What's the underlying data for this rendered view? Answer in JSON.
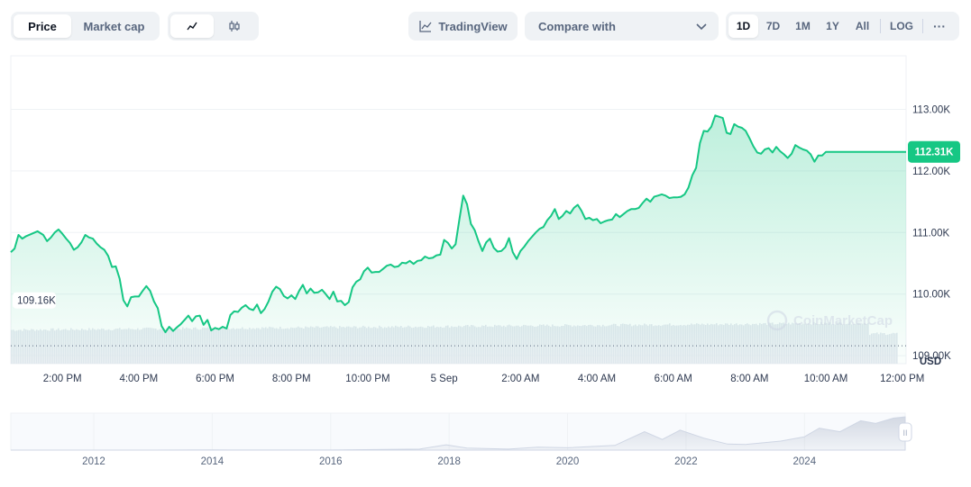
{
  "toolbar": {
    "type_tabs": [
      "Price",
      "Market cap"
    ],
    "tradingview_label": "TradingView",
    "compare_label": "Compare with",
    "ranges": [
      "1D",
      "7D",
      "1M",
      "1Y",
      "All"
    ],
    "log_label": "LOG",
    "more_label": "···"
  },
  "colors": {
    "line": "#16c784",
    "accent": "#16c784",
    "axis_text": "#2e3950"
  },
  "chart_data": {
    "type": "area",
    "title": "",
    "xlabel": "",
    "ylabel": "USD",
    "unit_label": "USD",
    "ylim": [
      108870,
      113870
    ],
    "y_ticks": [
      109000,
      110000,
      111000,
      112000,
      113000
    ],
    "y_tick_labels": [
      "109.00K",
      "110.00K",
      "111.00K",
      "112.00K",
      "113.00K"
    ],
    "x_tick_labels": [
      "2:00 PM",
      "4:00 PM",
      "6:00 PM",
      "8:00 PM",
      "10:00 PM",
      "5 Sep",
      "2:00 AM",
      "4:00 AM",
      "6:00 AM",
      "8:00 AM",
      "10:00 AM",
      "12:00 PM"
    ],
    "x_tick_hours": [
      2,
      4,
      6,
      8,
      10,
      12,
      14,
      16,
      18,
      20,
      22,
      24
    ],
    "x_range_hours": [
      0.65,
      24.1
    ],
    "open_price": 109160,
    "open_label": "109.16K",
    "current_price": 112310,
    "current_label": "112.31K",
    "watermark": "CoinMarketCap",
    "series": [
      {
        "name": "Price",
        "points": [
          [
            0.65,
            110680
          ],
          [
            0.75,
            110740
          ],
          [
            0.85,
            110960
          ],
          [
            0.95,
            110900
          ],
          [
            1.05,
            110940
          ],
          [
            1.2,
            110980
          ],
          [
            1.35,
            111020
          ],
          [
            1.5,
            110960
          ],
          [
            1.6,
            110860
          ],
          [
            1.7,
            110920
          ],
          [
            1.8,
            111000
          ],
          [
            1.9,
            111050
          ],
          [
            2.0,
            110980
          ],
          [
            2.1,
            110900
          ],
          [
            2.2,
            110830
          ],
          [
            2.3,
            110720
          ],
          [
            2.4,
            110760
          ],
          [
            2.5,
            110840
          ],
          [
            2.6,
            110960
          ],
          [
            2.7,
            110920
          ],
          [
            2.8,
            110900
          ],
          [
            2.9,
            110820
          ],
          [
            3.0,
            110760
          ],
          [
            3.1,
            110720
          ],
          [
            3.2,
            110620
          ],
          [
            3.3,
            110440
          ],
          [
            3.4,
            110450
          ],
          [
            3.5,
            110250
          ],
          [
            3.6,
            109900
          ],
          [
            3.7,
            109800
          ],
          [
            3.8,
            109950
          ],
          [
            3.9,
            109960
          ],
          [
            4.0,
            109960
          ],
          [
            4.1,
            110050
          ],
          [
            4.2,
            110130
          ],
          [
            4.3,
            110050
          ],
          [
            4.4,
            109880
          ],
          [
            4.5,
            109770
          ],
          [
            4.6,
            109480
          ],
          [
            4.7,
            109380
          ],
          [
            4.8,
            109470
          ],
          [
            4.9,
            109400
          ],
          [
            5.0,
            109460
          ],
          [
            5.1,
            109510
          ],
          [
            5.2,
            109580
          ],
          [
            5.3,
            109650
          ],
          [
            5.4,
            109560
          ],
          [
            5.5,
            109640
          ],
          [
            5.6,
            109650
          ],
          [
            5.7,
            109500
          ],
          [
            5.8,
            109580
          ],
          [
            5.9,
            109410
          ],
          [
            6.0,
            109450
          ],
          [
            6.1,
            109430
          ],
          [
            6.2,
            109470
          ],
          [
            6.3,
            109440
          ],
          [
            6.4,
            109660
          ],
          [
            6.5,
            109720
          ],
          [
            6.6,
            109710
          ],
          [
            6.7,
            109780
          ],
          [
            6.8,
            109820
          ],
          [
            6.9,
            109760
          ],
          [
            7.0,
            109740
          ],
          [
            7.1,
            109830
          ],
          [
            7.2,
            109690
          ],
          [
            7.3,
            109760
          ],
          [
            7.4,
            109880
          ],
          [
            7.5,
            110040
          ],
          [
            7.6,
            110120
          ],
          [
            7.7,
            110080
          ],
          [
            7.8,
            109970
          ],
          [
            7.9,
            109930
          ],
          [
            8.0,
            109980
          ],
          [
            8.1,
            109920
          ],
          [
            8.2,
            110050
          ],
          [
            8.3,
            110150
          ],
          [
            8.4,
            110010
          ],
          [
            8.5,
            110090
          ],
          [
            8.6,
            110020
          ],
          [
            8.7,
            110030
          ],
          [
            8.8,
            110070
          ],
          [
            8.9,
            110000
          ],
          [
            9.0,
            109920
          ],
          [
            9.1,
            110040
          ],
          [
            9.2,
            109880
          ],
          [
            9.3,
            109890
          ],
          [
            9.4,
            109820
          ],
          [
            9.5,
            109870
          ],
          [
            9.6,
            110110
          ],
          [
            9.7,
            110200
          ],
          [
            9.8,
            110240
          ],
          [
            9.9,
            110370
          ],
          [
            10.0,
            110430
          ],
          [
            10.1,
            110350
          ],
          [
            10.2,
            110360
          ],
          [
            10.3,
            110360
          ],
          [
            10.4,
            110410
          ],
          [
            10.5,
            110460
          ],
          [
            10.6,
            110480
          ],
          [
            10.7,
            110440
          ],
          [
            10.8,
            110450
          ],
          [
            10.9,
            110510
          ],
          [
            11.0,
            110500
          ],
          [
            11.1,
            110540
          ],
          [
            11.2,
            110490
          ],
          [
            11.3,
            110540
          ],
          [
            11.4,
            110550
          ],
          [
            11.5,
            110610
          ],
          [
            11.6,
            110580
          ],
          [
            11.7,
            110590
          ],
          [
            11.8,
            110630
          ],
          [
            11.9,
            110640
          ],
          [
            12.0,
            110880
          ],
          [
            12.1,
            110830
          ],
          [
            12.2,
            110740
          ],
          [
            12.3,
            110810
          ],
          [
            12.4,
            111220
          ],
          [
            12.5,
            111600
          ],
          [
            12.6,
            111460
          ],
          [
            12.7,
            111140
          ],
          [
            12.8,
            111040
          ],
          [
            12.9,
            110860
          ],
          [
            13.0,
            110700
          ],
          [
            13.1,
            110840
          ],
          [
            13.2,
            110900
          ],
          [
            13.3,
            110750
          ],
          [
            13.4,
            110690
          ],
          [
            13.5,
            110700
          ],
          [
            13.6,
            110760
          ],
          [
            13.7,
            110910
          ],
          [
            13.8,
            110680
          ],
          [
            13.9,
            110570
          ],
          [
            14.0,
            110700
          ],
          [
            14.1,
            110770
          ],
          [
            14.2,
            110860
          ],
          [
            14.3,
            110930
          ],
          [
            14.4,
            111000
          ],
          [
            14.5,
            111060
          ],
          [
            14.6,
            111090
          ],
          [
            14.7,
            111200
          ],
          [
            14.8,
            111270
          ],
          [
            14.9,
            111380
          ],
          [
            15.0,
            111220
          ],
          [
            15.1,
            111270
          ],
          [
            15.2,
            111350
          ],
          [
            15.3,
            111310
          ],
          [
            15.4,
            111400
          ],
          [
            15.5,
            111450
          ],
          [
            15.6,
            111350
          ],
          [
            15.7,
            111220
          ],
          [
            15.8,
            111240
          ],
          [
            15.9,
            111200
          ],
          [
            16.0,
            111220
          ],
          [
            16.1,
            111150
          ],
          [
            16.2,
            111180
          ],
          [
            16.3,
            111200
          ],
          [
            16.4,
            111210
          ],
          [
            16.5,
            111300
          ],
          [
            16.6,
            111250
          ],
          [
            16.7,
            111300
          ],
          [
            16.8,
            111350
          ],
          [
            16.9,
            111380
          ],
          [
            17.0,
            111380
          ],
          [
            17.1,
            111400
          ],
          [
            17.2,
            111480
          ],
          [
            17.3,
            111550
          ],
          [
            17.4,
            111500
          ],
          [
            17.5,
            111580
          ],
          [
            17.6,
            111600
          ],
          [
            17.7,
            111620
          ],
          [
            17.8,
            111600
          ],
          [
            17.9,
            111560
          ],
          [
            18.0,
            111570
          ],
          [
            18.1,
            111570
          ],
          [
            18.2,
            111580
          ],
          [
            18.3,
            111620
          ],
          [
            18.4,
            111730
          ],
          [
            18.5,
            111930
          ],
          [
            18.6,
            112050
          ],
          [
            18.7,
            112450
          ],
          [
            18.8,
            112650
          ],
          [
            18.9,
            112640
          ],
          [
            19.0,
            112720
          ],
          [
            19.1,
            112900
          ],
          [
            19.2,
            112880
          ],
          [
            19.3,
            112860
          ],
          [
            19.4,
            112620
          ],
          [
            19.5,
            112600
          ],
          [
            19.6,
            112760
          ],
          [
            19.7,
            112720
          ],
          [
            19.8,
            112700
          ],
          [
            19.9,
            112650
          ],
          [
            20.0,
            112530
          ],
          [
            20.1,
            112400
          ],
          [
            20.2,
            112300
          ],
          [
            20.3,
            112280
          ],
          [
            20.4,
            112350
          ],
          [
            20.5,
            112370
          ],
          [
            20.6,
            112300
          ],
          [
            20.7,
            112390
          ],
          [
            20.8,
            112320
          ],
          [
            20.9,
            112270
          ],
          [
            21.0,
            112210
          ],
          [
            21.1,
            112280
          ],
          [
            21.2,
            112420
          ],
          [
            21.3,
            112380
          ],
          [
            21.4,
            112350
          ],
          [
            21.5,
            112330
          ],
          [
            21.6,
            112270
          ],
          [
            21.7,
            112150
          ],
          [
            21.8,
            112250
          ],
          [
            21.9,
            112250
          ],
          [
            22.0,
            112310
          ],
          [
            22.1,
            112310
          ],
          [
            22.3,
            112310
          ],
          [
            22.5,
            112310
          ],
          [
            22.7,
            112310
          ],
          [
            22.9,
            112310
          ],
          [
            23.1,
            112310
          ],
          [
            23.3,
            112310
          ],
          [
            23.5,
            112310
          ],
          [
            23.7,
            112310
          ],
          [
            23.9,
            112310
          ],
          [
            24.1,
            112310
          ]
        ]
      }
    ],
    "brush": {
      "x_tick_labels": [
        "2012",
        "2014",
        "2016",
        "2018",
        "2020",
        "2022",
        "2024"
      ],
      "x_tick_years": [
        2012,
        2014,
        2016,
        2018,
        2020,
        2022,
        2024
      ],
      "x_range_years": [
        2010.6,
        2025.7
      ],
      "handle_label": "II"
    }
  }
}
